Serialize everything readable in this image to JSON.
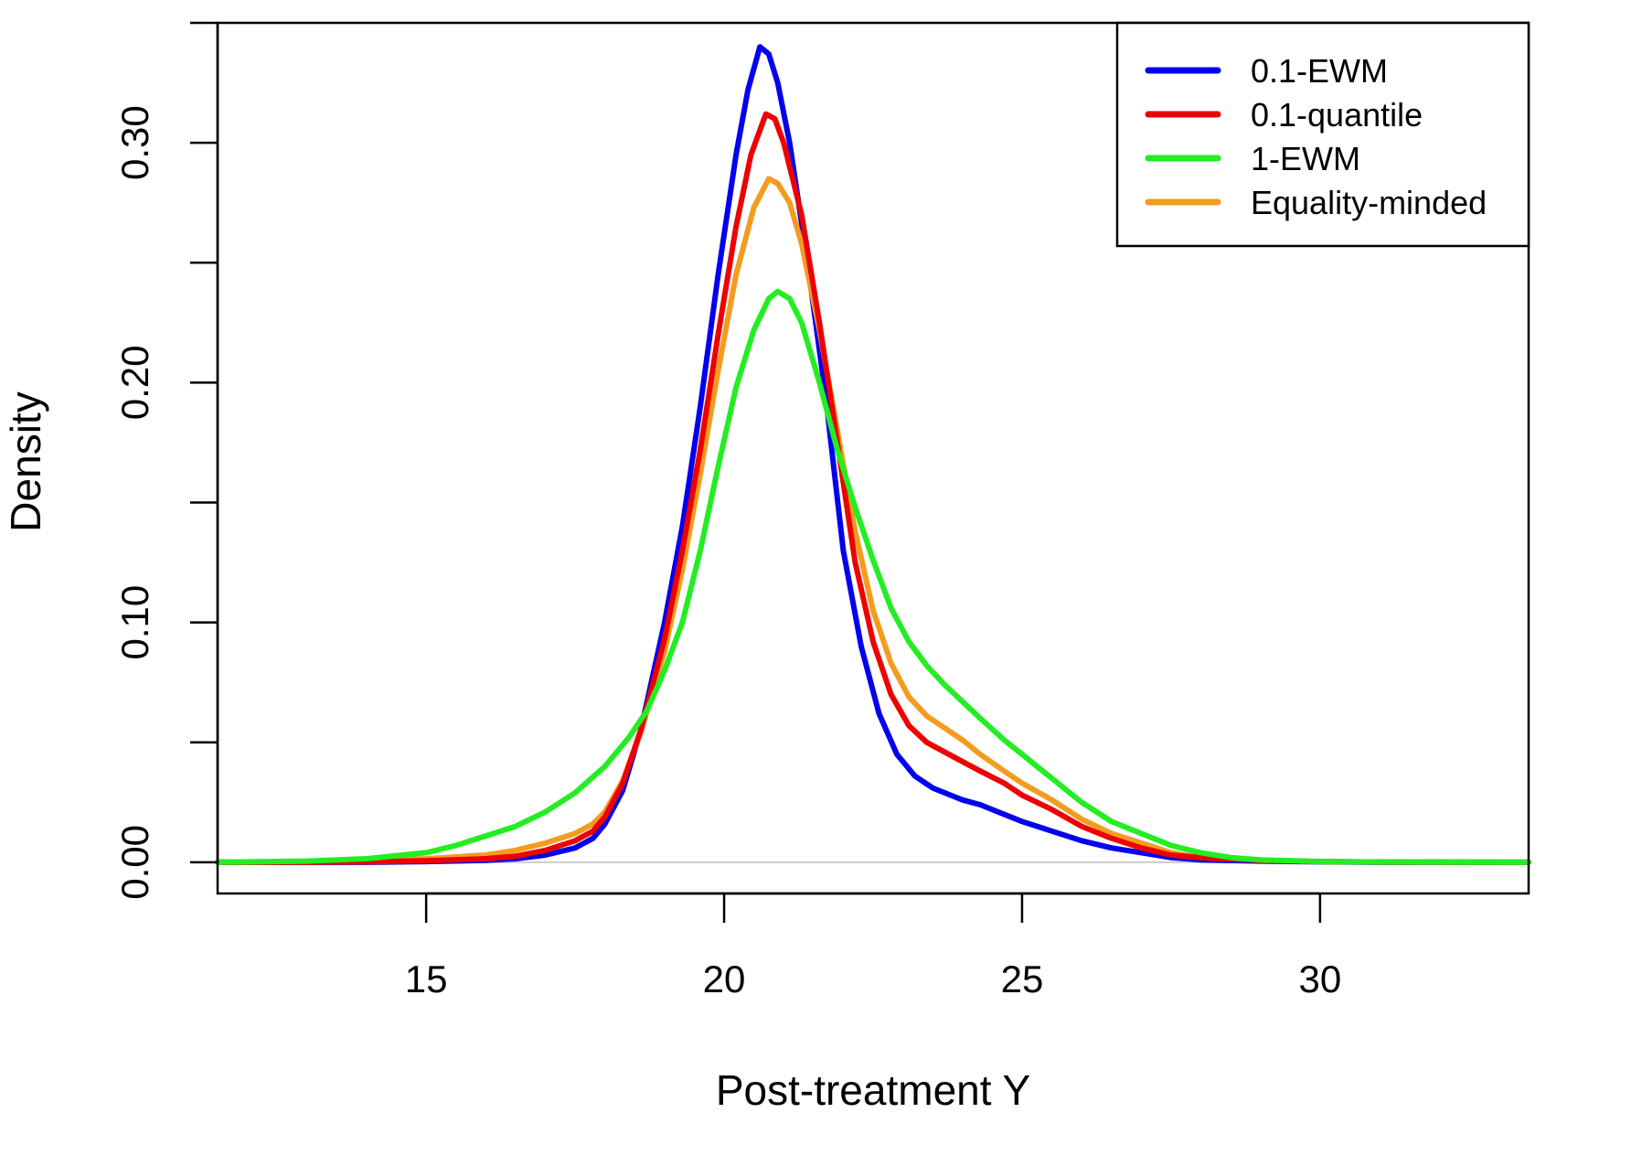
{
  "chart_data": {
    "type": "line",
    "title": "",
    "xlabel": "Post-treatment Y",
    "ylabel": "Density",
    "xlim": [
      11.5,
      33.5
    ],
    "ylim": [
      -0.013,
      0.35
    ],
    "xticks": [
      15,
      20,
      25,
      30
    ],
    "xtick_labels": [
      "15",
      "20",
      "25",
      "30"
    ],
    "yticks": [
      0.0,
      0.05,
      0.1,
      0.15,
      0.2,
      0.25,
      0.3,
      0.35
    ],
    "ytick_labels": [
      "0.00",
      "",
      "0.10",
      "",
      "0.20",
      "",
      "0.30",
      ""
    ],
    "baseline": 0,
    "legend_position": "top-right",
    "series": [
      {
        "name": "0.1-EWM",
        "color": "#0000ee",
        "x": [
          11.5,
          13,
          14,
          15,
          16,
          16.5,
          17,
          17.5,
          17.8,
          18,
          18.3,
          18.6,
          19,
          19.3,
          19.6,
          19.9,
          20.2,
          20.4,
          20.6,
          20.75,
          20.9,
          21.1,
          21.4,
          21.7,
          22,
          22.3,
          22.6,
          22.9,
          23.2,
          23.5,
          23.8,
          24,
          24.3,
          24.7,
          25,
          25.5,
          26,
          26.5,
          27,
          27.5,
          28,
          29,
          30,
          31,
          33.5
        ],
        "y": [
          0.0,
          0.0,
          0.0,
          0.0003,
          0.0008,
          0.0015,
          0.003,
          0.006,
          0.01,
          0.016,
          0.03,
          0.055,
          0.1,
          0.14,
          0.19,
          0.245,
          0.295,
          0.322,
          0.34,
          0.337,
          0.325,
          0.3,
          0.25,
          0.195,
          0.13,
          0.09,
          0.062,
          0.045,
          0.036,
          0.031,
          0.028,
          0.026,
          0.024,
          0.02,
          0.017,
          0.013,
          0.009,
          0.006,
          0.004,
          0.002,
          0.001,
          0.0005,
          0.0002,
          0.0,
          0.0
        ]
      },
      {
        "name": "0.1-quantile",
        "color": "#ee0000",
        "x": [
          11.5,
          13,
          14,
          15,
          16,
          16.5,
          17,
          17.5,
          17.8,
          18,
          18.3,
          18.6,
          19,
          19.3,
          19.6,
          19.9,
          20.2,
          20.45,
          20.7,
          20.85,
          21,
          21.3,
          21.6,
          21.9,
          22.2,
          22.5,
          22.8,
          23.1,
          23.4,
          23.7,
          24,
          24.3,
          24.7,
          25,
          25.5,
          26,
          26.5,
          27,
          27.5,
          28,
          29,
          30,
          31,
          33.5
        ],
        "y": [
          0.0,
          0.0,
          0.0002,
          0.0006,
          0.0015,
          0.0025,
          0.005,
          0.009,
          0.013,
          0.019,
          0.033,
          0.055,
          0.093,
          0.13,
          0.172,
          0.22,
          0.265,
          0.295,
          0.312,
          0.31,
          0.3,
          0.27,
          0.225,
          0.175,
          0.125,
          0.092,
          0.07,
          0.057,
          0.05,
          0.046,
          0.042,
          0.038,
          0.033,
          0.028,
          0.022,
          0.015,
          0.01,
          0.006,
          0.003,
          0.002,
          0.0008,
          0.0003,
          0.0001,
          0.0
        ]
      },
      {
        "name": "1-EWM",
        "color": "#22ee22",
        "x": [
          11.5,
          13,
          14,
          15,
          15.5,
          16,
          16.5,
          17,
          17.5,
          18,
          18.4,
          18.7,
          19,
          19.3,
          19.6,
          19.9,
          20.2,
          20.5,
          20.75,
          20.9,
          21.1,
          21.3,
          21.6,
          21.9,
          22.2,
          22.5,
          22.8,
          23.1,
          23.4,
          23.7,
          24,
          24.3,
          24.7,
          25,
          25.5,
          26,
          26.5,
          27,
          27.5,
          28,
          28.5,
          29,
          30,
          31,
          33.5
        ],
        "y": [
          0.0,
          0.0005,
          0.0015,
          0.004,
          0.007,
          0.011,
          0.015,
          0.021,
          0.029,
          0.04,
          0.052,
          0.063,
          0.08,
          0.1,
          0.13,
          0.165,
          0.198,
          0.222,
          0.235,
          0.238,
          0.235,
          0.225,
          0.2,
          0.172,
          0.148,
          0.126,
          0.106,
          0.092,
          0.082,
          0.074,
          0.067,
          0.06,
          0.051,
          0.045,
          0.035,
          0.025,
          0.017,
          0.012,
          0.007,
          0.004,
          0.002,
          0.001,
          0.0003,
          0.0001,
          0.0
        ]
      },
      {
        "name": "Equality-minded",
        "color": "#f39c1f",
        "x": [
          11.5,
          13,
          14,
          15,
          16,
          16.5,
          17,
          17.5,
          17.8,
          18,
          18.3,
          18.6,
          19,
          19.3,
          19.6,
          19.9,
          20.2,
          20.5,
          20.75,
          20.9,
          21.1,
          21.3,
          21.6,
          21.9,
          22.2,
          22.5,
          22.8,
          23.1,
          23.4,
          23.7,
          24,
          24.3,
          24.7,
          25,
          25.5,
          26,
          26.5,
          27,
          27.5,
          28,
          29,
          30,
          31,
          33.5
        ],
        "y": [
          0.0,
          0.0002,
          0.0006,
          0.0015,
          0.003,
          0.005,
          0.008,
          0.012,
          0.016,
          0.021,
          0.034,
          0.054,
          0.088,
          0.122,
          0.162,
          0.205,
          0.245,
          0.273,
          0.285,
          0.283,
          0.275,
          0.258,
          0.222,
          0.18,
          0.138,
          0.105,
          0.083,
          0.069,
          0.061,
          0.056,
          0.051,
          0.045,
          0.038,
          0.033,
          0.026,
          0.018,
          0.012,
          0.008,
          0.004,
          0.002,
          0.0008,
          0.0003,
          0.0001,
          0.0
        ]
      }
    ]
  }
}
